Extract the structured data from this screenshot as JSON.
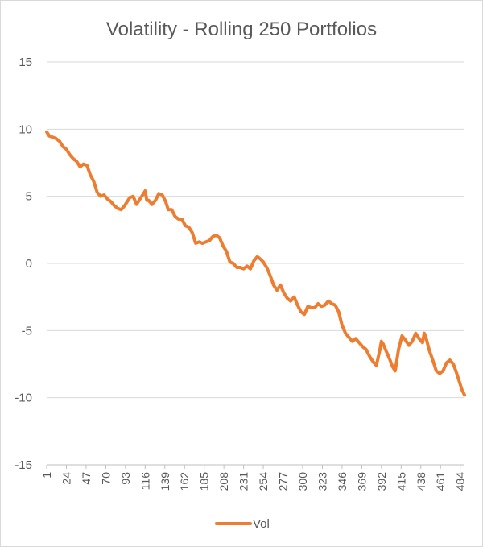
{
  "chart_data": {
    "type": "line",
    "title": "Volatility - Rolling 250 Portfolios",
    "xlabel": "",
    "ylabel": "",
    "ylim": [
      -15,
      15
    ],
    "yticks": [
      15,
      10,
      5,
      0,
      -5,
      -10,
      -15
    ],
    "xlim": [
      1,
      489
    ],
    "xticks": [
      1,
      24,
      47,
      70,
      93,
      116,
      139,
      162,
      185,
      208,
      231,
      254,
      277,
      300,
      323,
      346,
      369,
      392,
      415,
      438,
      461,
      484
    ],
    "grid": true,
    "legend": "bottom",
    "series": [
      {
        "name": "Vol",
        "color": "#ed7d31",
        "x": [
          1,
          4,
          8,
          12,
          16,
          20,
          24,
          28,
          32,
          36,
          40,
          44,
          48,
          52,
          56,
          60,
          64,
          68,
          72,
          76,
          80,
          84,
          88,
          92,
          95,
          98,
          102,
          106,
          110,
          112,
          116,
          118,
          120,
          124,
          128,
          132,
          136,
          140,
          143,
          147,
          151,
          155,
          159,
          163,
          167,
          171,
          175,
          179,
          183,
          187,
          191,
          195,
          199,
          203,
          207,
          211,
          215,
          219,
          223,
          227,
          231,
          235,
          239,
          243,
          247,
          249,
          251,
          254,
          258,
          262,
          266,
          270,
          274,
          278,
          282,
          286,
          290,
          294,
          298,
          302,
          306,
          310,
          314,
          318,
          322,
          326,
          330,
          334,
          338,
          342,
          346,
          350,
          354,
          358,
          362,
          366,
          370,
          374,
          378,
          382,
          386,
          390,
          392,
          394,
          398,
          402,
          405,
          408,
          412,
          416,
          420,
          424,
          428,
          432,
          436,
          440,
          442,
          444,
          448,
          452,
          456,
          460,
          464,
          468,
          472,
          476,
          480,
          483,
          486,
          489
        ],
        "y": [
          9.8,
          9.5,
          9.4,
          9.3,
          9.1,
          8.7,
          8.5,
          8.1,
          7.8,
          7.6,
          7.2,
          7.4,
          7.3,
          6.6,
          6.1,
          5.3,
          5.0,
          5.1,
          4.8,
          4.6,
          4.3,
          4.1,
          4.0,
          4.3,
          4.6,
          4.9,
          5.0,
          4.4,
          4.8,
          5.0,
          5.4,
          4.7,
          4.7,
          4.4,
          4.7,
          5.2,
          5.1,
          4.6,
          4.0,
          4.0,
          3.5,
          3.3,
          3.3,
          2.8,
          2.7,
          2.3,
          1.5,
          1.6,
          1.5,
          1.6,
          1.7,
          2.0,
          2.1,
          1.9,
          1.3,
          0.9,
          0.1,
          0.0,
          -0.3,
          -0.3,
          -0.4,
          -0.2,
          -0.4,
          0.2,
          0.5,
          0.4,
          0.3,
          0.1,
          -0.3,
          -0.9,
          -1.6,
          -2.0,
          -1.6,
          -2.2,
          -2.6,
          -2.8,
          -2.5,
          -3.1,
          -3.6,
          -3.8,
          -3.2,
          -3.3,
          -3.3,
          -3.0,
          -3.2,
          -3.1,
          -2.8,
          -3.0,
          -3.1,
          -3.6,
          -4.6,
          -5.2,
          -5.5,
          -5.8,
          -5.6,
          -5.9,
          -6.2,
          -6.4,
          -6.9,
          -7.3,
          -7.6,
          -6.5,
          -5.8,
          -6.0,
          -6.6,
          -7.2,
          -7.7,
          -8.0,
          -6.4,
          -5.4,
          -5.7,
          -6.1,
          -5.8,
          -5.2,
          -5.6,
          -5.9,
          -5.2,
          -5.5,
          -6.5,
          -7.2,
          -8.0,
          -8.2,
          -8.0,
          -7.4,
          -7.2,
          -7.5,
          -8.2,
          -8.8,
          -9.4,
          -9.8
        ]
      }
    ]
  }
}
